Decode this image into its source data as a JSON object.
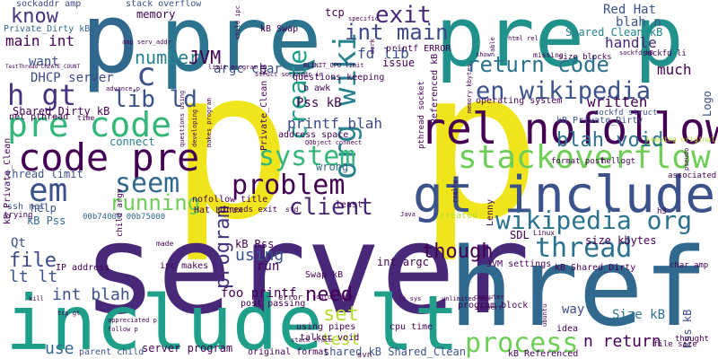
{
  "words": {
    "pp": "p p",
    "server": "server",
    "href": "href",
    "p1": "p",
    "pre1": "pre",
    "pre2": "pre p",
    "include_lt": "include lt",
    "gt_include": "gt include",
    "rel_nofollow": "rel nofollow",
    "code_pre": "code pre",
    "pre_code": "pre code",
    "stackoverflow": "stackoverflow",
    "wikipedia_org": "wikipedia org",
    "en_wikipedia": "en wikipedia",
    "org_wiki": "org wiki",
    "system": "system",
    "problem": "problem",
    "process": "process",
    "return_code": "return code",
    "thread": "thread",
    "em": "em",
    "gt": "h gt",
    "c": "c",
    "seem": "seem",
    "running": "running",
    "client": "client",
    "lib_ld": "lib ld",
    "create": "create",
    "int_main": "int main",
    "exit": "exit",
    "know": "know",
    "number": "number",
    "JVM": "JVM",
    "main_int": "main int",
    "file": "file",
    "lt_lt": "lt lt",
    "int_blah": "int blah",
    "use": "use",
    "need": "need",
    "set": "set",
    "test": "test",
    "though": "though",
    "program": "program",
    "using": "using",
    "blah_void": "blah void",
    "written": "written",
    "much": "much",
    "handle": "handle",
    "Red_Hat": "Red Hat",
    "blah_n": "blah n",
    "n_return": "n return",
    "size_kbytes": "size kbytes",
    "Size_kB": "Size kB",
    "way": "way",
    "printf_blah": "printf blah",
    "fd_lib": "fd lib",
    "Pss_kB": "Pss kB",
    "DHCP_server": "DHCP server",
    "tcp": "tcp",
    "memory": "memory",
    "stack_overflow": "stack overflow",
    "sockaddr_amp": "sockaddr amp",
    "Private_Dirty_kB": "Private_Dirty kB",
    "Shared_Clean_kB": "Shared_Clean kB",
    "Shared_Dirty_kB": "Shared_Dirty kB",
    "kB_Swap": "kB Swap",
    "argc_char": "argc char",
    "kB_Pss": "kB Pss",
    "kB_Rss": "kB Rss",
    "foo_printf": "foo printf",
    "int_argc": "int argc",
    "server_program": "server program",
    "shared_kB_Shared_Clean": "shared kB Shared_Clean",
    "issue": "issue",
    "wrong": "wrong",
    "connect": "connect",
    "want": "want",
    "help": "help",
    "Qt": "Qt",
    "run": "run",
    "SDL": "SDL",
    "kB_Shared_Dirty": "kB Shared_Dirty",
    "kB_Private_Dirty": "kB Private_Dirty",
    "kB_Referenced": "kB Referenced",
    "Rss_kB": "Rss kB",
    "thread_limit": "thread limit",
    "Logo": "Logo",
    "kB_Private_Clean": "kB Private_Clean",
    "IP_address": "IP address",
    "address_space": "address space",
    "printf_ERROR": "printf ERROR",
    "talker_void": "talker void",
    "questions_keeping": "questions keeping",
    "net_pthread": "net pthread",
    "ssh_net": "ssh net",
    "Swap_kB": "Swap kB",
    "post_passing": "post passing",
    "using_pipes": "using pipes",
    "cpu_time": "cpu time",
    "original_format": "original format",
    "parent_child": "parent child",
    "ipc_makes": "ipc makes",
    "nofollow_title": "nofollow title",
    "Hat_Linux": "Hat Linux",
    "JVM_settings": "JVM settings",
    "operating_system": "operating system",
    "program_block": "program block",
    "b_awk": "b awk",
    "Private_Clean_kB": "Private_Clean kB",
    "pthread_socket": "pthread socket",
    "Referenced_kB": "Referenced kB",
    "sockfd_struct": "sockfd struct",
    "sockfd_li": "sockfd li",
    "size_blocks": "size blocks",
    "keeping_original": "keeping original",
    "format_post": "format post",
    "hellogt": "hellogt",
    "associated": "associated",
    "idea": "idea",
    "thought": "thought",
    "char_amp": "char amp",
    "Lenny": "Lenny",
    "created": "created",
    "least": "least",
    "trying": "trying",
    "pseudo": "pseudo",
    "n_a": "00b74000 00b75000",
    "threads_exit": "threads exit",
    "file_size": "file size",
    "ubuntu": "ubuntu",
    "svn": "svn",
    "error": "error",
    "time": "time",
    "made": "made",
    "std": "std",
    "h3": "h3",
    "Linux": "Linux",
    "missing": "missing",
    "child_ipc": "child ipc",
    "specific": "specific",
    "limit_program": "limit program",
    "advance_p": "advance p",
    "questions_using": "questions using",
    "child_argv": "child argv",
    "makes_program": "makes program",
    "struct_sockaddr": "struct sockaddr in",
    "developing": "developing",
    "unlimited_max": "unlimited max",
    "follow_p": "follow p",
    "appreciated_p": "appreciated p",
    "source_file": "source file",
    "Java": "Java",
    "really": "really",
    "stack_trace": "stack trace",
    "connect_p": "QObject connect",
    "amp_serv_addr": "amp serv_addr",
    "BLINIT_CPU": "BLINIT_CPU limit",
    "TestThread": "TestThread CREATE_COUNT",
    "shown": "shown",
    "able": "able",
    "html_rel": "html rel",
    "work": "work",
    "kill": "kill",
    "tcp_gt": "tcp gt",
    "lt_sys": "lt sys",
    "computer": "computer",
    "convert": "convert",
    "sockfd_kb": "sockfd kB",
    "memory_kbytes": "memory kbytes"
  }
}
